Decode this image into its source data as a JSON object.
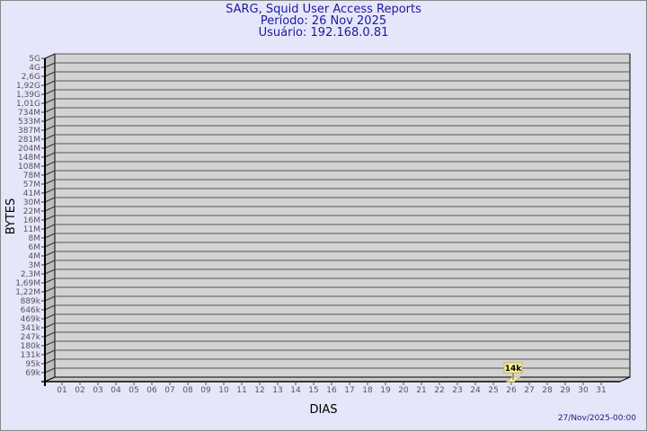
{
  "chart_data": {
    "type": "bar",
    "title": "SARG, Squid User Access Reports",
    "subtitle": [
      "Período: 26 Nov 2025",
      "Usuário: 192.168.0.81"
    ],
    "xlabel": "DIAS",
    "ylabel": "BYTES",
    "y_scale": "log",
    "y_tick_labels": [
      "5G",
      "4G",
      "2,6G",
      "1,92G",
      "1,39G",
      "1,01G",
      "734M",
      "533M",
      "387M",
      "281M",
      "204M",
      "148M",
      "108M",
      "78M",
      "57M",
      "41M",
      "30M",
      "22M",
      "16M",
      "11M",
      "8M",
      "6M",
      "4M",
      "3M",
      "2,3M",
      "1,69M",
      "1,22M",
      "889k",
      "646k",
      "469k",
      "341k",
      "247k",
      "180k",
      "131k",
      "95k",
      "69k"
    ],
    "categories": [
      "01",
      "02",
      "03",
      "04",
      "05",
      "06",
      "07",
      "08",
      "09",
      "10",
      "11",
      "12",
      "13",
      "14",
      "15",
      "16",
      "17",
      "18",
      "19",
      "20",
      "21",
      "22",
      "23",
      "24",
      "25",
      "26",
      "27",
      "28",
      "29",
      "30",
      "31"
    ],
    "values": [
      null,
      null,
      null,
      null,
      null,
      null,
      null,
      null,
      null,
      null,
      null,
      null,
      null,
      null,
      null,
      null,
      null,
      null,
      null,
      null,
      null,
      null,
      null,
      null,
      null,
      14000,
      null,
      null,
      null,
      null,
      null
    ],
    "data_labels": {
      "26": "14k"
    },
    "grid": true,
    "colors": {
      "background": "#e6e6fa",
      "plot": "#d3d3d3",
      "bar": "#fff0a0",
      "text": "#1a1aa0"
    }
  },
  "footer": "27/Nov/2025-00:00"
}
